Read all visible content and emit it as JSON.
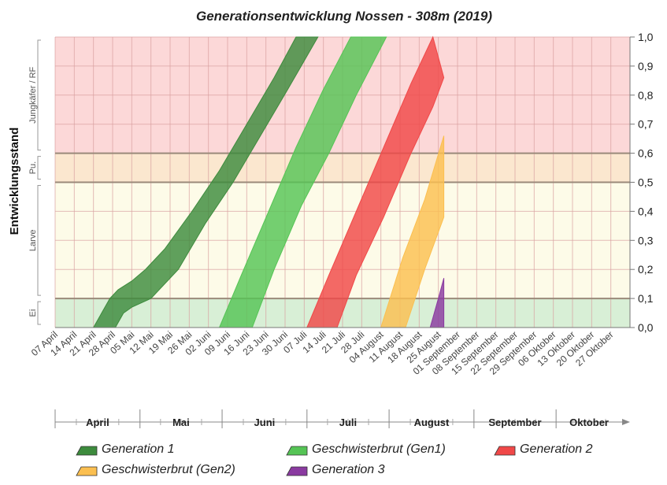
{
  "chart_data": {
    "type": "area",
    "title": "Generationsentwicklung Nossen - 308m (2019)",
    "ylabel": "Entwicklungsstand",
    "ylim": [
      0,
      1
    ],
    "yticks": [
      "0,0",
      "0,1",
      "0,2",
      "0,3",
      "0,4",
      "0,5",
      "0,6",
      "0,7",
      "0,8",
      "0,9",
      "1,0"
    ],
    "x_ticks": [
      "07 April",
      "14 April",
      "21 April",
      "28 April",
      "05 Mai",
      "12 Mai",
      "19 Mai",
      "26 Mai",
      "02 Juni",
      "09 Juni",
      "16 Juni",
      "23 Juni",
      "30 Juni",
      "07 Juli",
      "14 Juli",
      "21 Juli",
      "28 Juli",
      "04 August",
      "11 August",
      "18 August",
      "25 August",
      "01 September",
      "08 September",
      "15 September",
      "22 September",
      "29 September",
      "06 Oktober",
      "13 Oktober",
      "20 Oktober",
      "27 Oktober"
    ],
    "months": [
      "April",
      "Mai",
      "Juni",
      "Juli",
      "August",
      "September",
      "Oktober"
    ],
    "stages": [
      {
        "name": "Ei",
        "from": 0.0,
        "to": 0.1,
        "color": "#d8efd6"
      },
      {
        "name": "Larve",
        "from": 0.1,
        "to": 0.5,
        "color": "#fdfbe8"
      },
      {
        "name": "Pu.",
        "from": 0.5,
        "to": 0.6,
        "color": "#fbe7cf"
      },
      {
        "name": "Jungkäfer / RF",
        "from": 0.6,
        "to": 1.0,
        "color": "#fcd8d8"
      }
    ],
    "series": [
      {
        "name": "Generation 1",
        "color": "#3d8b3d",
        "upper": [
          [
            14,
            0
          ],
          [
            17,
            0.05
          ],
          [
            20,
            0.1
          ],
          [
            23,
            0.13
          ],
          [
            28,
            0.16
          ],
          [
            33,
            0.2
          ],
          [
            40,
            0.27
          ],
          [
            50,
            0.4
          ],
          [
            60,
            0.54
          ],
          [
            70,
            0.7
          ],
          [
            80,
            0.86
          ],
          [
            88,
            1.0
          ]
        ],
        "lower": [
          [
            22,
            0
          ],
          [
            25,
            0.05
          ],
          [
            28,
            0.07
          ],
          [
            35,
            0.1
          ],
          [
            45,
            0.2
          ],
          [
            55,
            0.36
          ],
          [
            65,
            0.5
          ],
          [
            75,
            0.66
          ],
          [
            85,
            0.82
          ],
          [
            96,
            1.0
          ]
        ]
      },
      {
        "name": "Geschwisterbrut (Gen1)",
        "color": "#55c455",
        "upper": [
          [
            60,
            0
          ],
          [
            68,
            0.18
          ],
          [
            78,
            0.4
          ],
          [
            88,
            0.62
          ],
          [
            98,
            0.82
          ],
          [
            108,
            1.0
          ]
        ],
        "lower": [
          [
            72,
            0
          ],
          [
            80,
            0.2
          ],
          [
            90,
            0.42
          ],
          [
            100,
            0.6
          ],
          [
            110,
            0.8
          ],
          [
            121,
            1.0
          ]
        ]
      },
      {
        "name": "Generation 2",
        "color": "#f04848",
        "upper": [
          [
            92,
            0
          ],
          [
            100,
            0.18
          ],
          [
            110,
            0.4
          ],
          [
            120,
            0.62
          ],
          [
            130,
            0.84
          ],
          [
            138,
            1.0
          ]
        ],
        "lower": [
          [
            103,
            0
          ],
          [
            110,
            0.18
          ],
          [
            120,
            0.38
          ],
          [
            130,
            0.6
          ],
          [
            138,
            0.76
          ],
          [
            142,
            0.86
          ]
        ]
      },
      {
        "name": "Geschwisterbrut (Gen2)",
        "color": "#fbbf50",
        "upper": [
          [
            119,
            0
          ],
          [
            127,
            0.24
          ],
          [
            135,
            0.44
          ],
          [
            142,
            0.66
          ]
        ],
        "lower": [
          [
            128,
            0
          ],
          [
            135,
            0.2
          ],
          [
            142,
            0.38
          ]
        ]
      },
      {
        "name": "Generation 3",
        "color": "#8a3aa0",
        "upper": [
          [
            137,
            0
          ],
          [
            140,
            0.1
          ],
          [
            142,
            0.17
          ]
        ],
        "lower": [
          [
            142,
            0
          ]
        ]
      }
    ]
  }
}
